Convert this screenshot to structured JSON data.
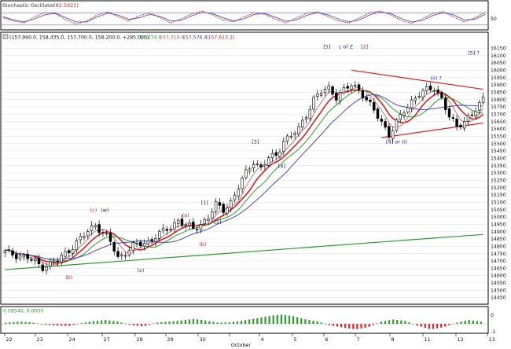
{
  "chart_data": [
    {
      "panel": "stochastic",
      "type": "line",
      "title": "Stochastic Oscillator",
      "value_label": "(82.5921)",
      "yticks": [
        50
      ],
      "ylim": [
        0,
        100
      ],
      "reference_lines": [
        20,
        80
      ],
      "series": [
        {
          "color": "#d62728",
          "values": [
            55,
            40,
            30,
            60,
            82,
            75,
            45,
            25,
            40,
            70,
            85,
            60,
            40,
            65,
            80,
            55,
            30,
            50,
            75,
            88,
            70,
            45,
            35,
            60,
            80,
            72,
            48,
            30,
            55,
            78,
            85,
            62,
            40,
            30,
            55,
            80,
            88,
            70,
            42,
            28,
            50,
            76,
            85,
            60,
            35,
            55,
            82
          ]
        },
        {
          "color": "#5050c8",
          "values": [
            60,
            45,
            35,
            50,
            70,
            78,
            55,
            35,
            35,
            60,
            78,
            68,
            48,
            55,
            72,
            62,
            40,
            42,
            65,
            82,
            76,
            55,
            40,
            50,
            72,
            76,
            58,
            38,
            45,
            68,
            80,
            70,
            50,
            35,
            45,
            70,
            84,
            76,
            52,
            35,
            42,
            66,
            80,
            70,
            45,
            48,
            72
          ]
        }
      ]
    },
    {
      "panel": "price",
      "type": "candlestick",
      "instrument_label": "(157,990.0, 158,435.0, 157,700.0, 158,200.0, +285.000)",
      "ma_labels": [
        {
          "text": "157,274.6",
          "color": "#2a9d2a"
        },
        {
          "text": "157,319.6",
          "color": "#e05050"
        },
        {
          "text": "157,576.4",
          "color": "#4040c0"
        },
        {
          "text": "(157,613.2)",
          "color": "#c82828"
        }
      ],
      "ylim": [
        14410,
        16200
      ],
      "yticks": [
        14450,
        14500,
        14550,
        14600,
        14650,
        14700,
        14750,
        14800,
        14850,
        14900,
        14950,
        15000,
        15050,
        15100,
        15150,
        15200,
        15250,
        15300,
        15350,
        15400,
        15450,
        15500,
        15550,
        15600,
        15650,
        15700,
        15750,
        15800,
        15850,
        15900,
        15950,
        16000,
        16050,
        16100,
        16150
      ],
      "x_date_labels": [
        "22",
        "23",
        "24",
        "27",
        "28",
        "29",
        "30",
        "October",
        "4",
        "5",
        "6",
        "7",
        "8",
        "11",
        "12",
        "13"
      ],
      "x_label_sub": "October",
      "anchors": [
        [
          0,
          14760
        ],
        [
          6,
          14720
        ],
        [
          10,
          14660
        ],
        [
          14,
          14700
        ],
        [
          18,
          14800
        ],
        [
          22,
          14900
        ],
        [
          24,
          14950
        ],
        [
          26,
          14890
        ],
        [
          28,
          14830
        ],
        [
          30,
          14720
        ],
        [
          32,
          14760
        ],
        [
          34,
          14800
        ],
        [
          38,
          14830
        ],
        [
          40,
          14870
        ],
        [
          42,
          14900
        ],
        [
          44,
          14930
        ],
        [
          46,
          14980
        ],
        [
          48,
          14940
        ],
        [
          50,
          14920
        ],
        [
          52,
          14950
        ],
        [
          54,
          15000
        ],
        [
          56,
          15080
        ],
        [
          58,
          15050
        ],
        [
          60,
          15100
        ],
        [
          62,
          15200
        ],
        [
          64,
          15300
        ],
        [
          66,
          15380
        ],
        [
          68,
          15330
        ],
        [
          70,
          15400
        ],
        [
          72,
          15420
        ],
        [
          74,
          15520
        ],
        [
          76,
          15550
        ],
        [
          78,
          15600
        ],
        [
          80,
          15700
        ],
        [
          82,
          15800
        ],
        [
          84,
          15850
        ],
        [
          86,
          15880
        ],
        [
          88,
          15820
        ],
        [
          90,
          15860
        ],
        [
          92,
          15900
        ],
        [
          94,
          15870
        ],
        [
          96,
          15800
        ],
        [
          98,
          15720
        ],
        [
          100,
          15650
        ],
        [
          102,
          15560
        ],
        [
          104,
          15640
        ],
        [
          106,
          15720
        ],
        [
          108,
          15790
        ],
        [
          110,
          15840
        ],
        [
          112,
          15860
        ],
        [
          114,
          15880
        ],
        [
          116,
          15810
        ],
        [
          118,
          15680
        ],
        [
          120,
          15610
        ],
        [
          122,
          15660
        ],
        [
          124,
          15700
        ],
        [
          126,
          15760
        ],
        [
          127,
          15800
        ]
      ],
      "moving_averages": [
        {
          "color": "#d22020",
          "width": 1.6,
          "window": 8
        },
        {
          "color": "#e07070",
          "width": 1,
          "window": 5
        },
        {
          "color": "#2a9d2a",
          "width": 1,
          "window": 12
        },
        {
          "color": "#4848c8",
          "width": 1,
          "window": 18
        }
      ],
      "trendlines": [
        {
          "color": "#2a9d2a",
          "points": [
            [
              0,
              14640
            ],
            [
              127,
              14880
            ]
          ]
        },
        {
          "color": "#e02020",
          "points": [
            [
              92,
              16000
            ],
            [
              127,
              15870
            ]
          ]
        },
        {
          "color": "#e02020",
          "points": [
            [
              100,
              15540
            ],
            [
              127,
              15640
            ]
          ]
        }
      ],
      "annotations": [
        {
          "text": "(c)",
          "x": 23.5,
          "y": 15035,
          "color": "#c82828"
        },
        {
          "text": "(w)",
          "x": 26.5,
          "y": 15035,
          "color": "#222288"
        },
        {
          "text": "(a)",
          "x": 48,
          "y": 15000,
          "color": "#c82828"
        },
        {
          "text": "[1]",
          "x": 53,
          "y": 15085,
          "color": "#222288"
        },
        {
          "text": "[2]",
          "x": 56.5,
          "y": 14955,
          "color": "#222288"
        },
        {
          "text": "(b)",
          "x": 52.5,
          "y": 14800,
          "color": "#c82828"
        },
        {
          "text": "(x)",
          "x": 36,
          "y": 14625,
          "color": "#222288"
        },
        {
          "text": "(b)",
          "x": 17,
          "y": 14575,
          "color": "#c82828"
        },
        {
          "text": "[3]",
          "x": 66.5,
          "y": 15500,
          "color": "#222288"
        },
        {
          "text": "[4]",
          "x": 73.5,
          "y": 15335,
          "color": "#222288"
        },
        {
          "text": "[5]",
          "x": 85.5,
          "y": 16150,
          "color": "#222288"
        },
        {
          "text": "c of Z",
          "x": 90.5,
          "y": 16150,
          "color": "#222288"
        },
        {
          "text": "[2]",
          "x": 95.5,
          "y": 16150,
          "color": "#c82828"
        },
        {
          "text": "[4] or (i)",
          "x": 104,
          "y": 15500,
          "color": "#222288"
        },
        {
          "text": "(ii) ?",
          "x": 114.5,
          "y": 15935,
          "color": "#222288"
        },
        {
          "text": "[5] ?",
          "x": 124.5,
          "y": 16105,
          "color": "#222288"
        }
      ]
    },
    {
      "panel": "oscillator",
      "type": "bar",
      "value_label": "0.08540, 0.0000",
      "yticks": [
        0,
        -1
      ],
      "positive_color": "#2a9d2a",
      "negative_color": "#d62728",
      "values": [
        0.1,
        0.2,
        0.15,
        -0.05,
        -0.15,
        -0.2,
        0.05,
        0.25,
        0.35,
        0.2,
        -0.1,
        -0.25,
        0.1,
        0.2,
        0.3,
        0.45,
        0.3,
        0.1,
        0.15,
        0.3,
        0.5,
        0.7,
        0.85,
        0.7,
        0.4,
        0.2,
        -0.15,
        -0.35,
        -0.5,
        -0.3,
        0.2,
        0.4,
        0.25,
        -0.2,
        -0.5,
        -0.3,
        0.1,
        0.35,
        0.2
      ]
    }
  ]
}
